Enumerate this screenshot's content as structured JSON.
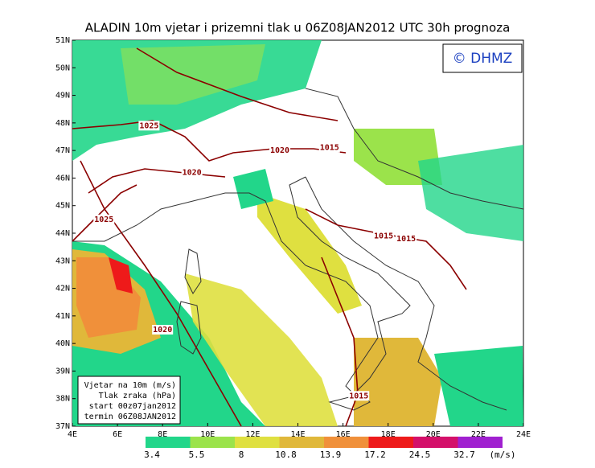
{
  "header": {
    "title": "ALADIN 10m vjetar i prizemni tlak u 06Z08JAN2012 UTC 30h prognoza",
    "copyright": "© DHMZ"
  },
  "map": {
    "lat_labels": [
      "51N",
      "50N",
      "49N",
      "48N",
      "47N",
      "46N",
      "45N",
      "44N",
      "43N",
      "42N",
      "41N",
      "40N",
      "39N",
      "38N",
      "37N"
    ],
    "lon_labels": [
      "4E",
      "6E",
      "8E",
      "10E",
      "12E",
      "14E",
      "16E",
      "18E",
      "20E",
      "22E",
      "24E"
    ],
    "isobar_labels": [
      {
        "text": "1025",
        "lon": 7.4,
        "lat": 47.9
      },
      {
        "text": "1020",
        "lon": 13.2,
        "lat": 47.0
      },
      {
        "text": "1015",
        "lon": 15.4,
        "lat": 47.1
      },
      {
        "text": "1020",
        "lon": 9.3,
        "lat": 46.2
      },
      {
        "text": "1025",
        "lon": 5.4,
        "lat": 44.5
      },
      {
        "text": "1015",
        "lon": 17.8,
        "lat": 43.9
      },
      {
        "text": "1015",
        "lon": 18.8,
        "lat": 43.8
      },
      {
        "text": "1020",
        "lon": 8.0,
        "lat": 40.5
      },
      {
        "text": "1015",
        "lon": 16.7,
        "lat": 38.1
      }
    ]
  },
  "legend": {
    "lines": [
      "Vjetar na 10m (m/s)",
      "Tlak zraka (hPa)",
      "start 00z07jan2012",
      "termin 06Z08JAN2012"
    ]
  },
  "colorbar": {
    "levels": [
      3.4,
      5.5,
      8,
      10.8,
      13.9,
      17.2,
      24.5,
      32.7
    ],
    "colors": [
      "#22d68a",
      "#9be34b",
      "#dfe040",
      "#e0b83a",
      "#f0903a",
      "#ee1a1a",
      "#d4106a",
      "#a020d0"
    ],
    "unit": "(m/s)"
  }
}
